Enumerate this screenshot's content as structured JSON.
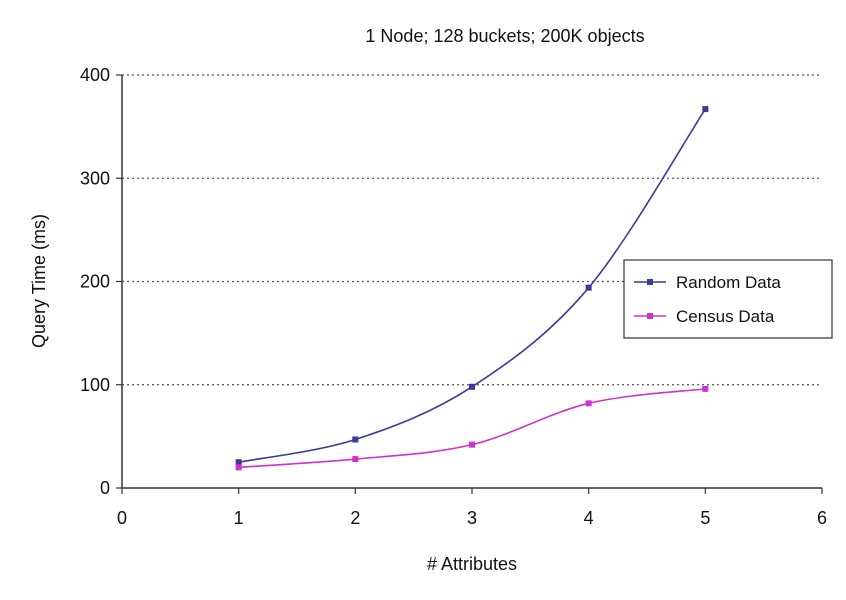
{
  "chart_data": {
    "type": "line",
    "title": "1 Node; 128 buckets; 200K objects",
    "xlabel": "# Attributes",
    "ylabel": "Query Time (ms)",
    "xlim": [
      0,
      6
    ],
    "ylim": [
      0,
      400
    ],
    "xticks": [
      0,
      1,
      2,
      3,
      4,
      5,
      6
    ],
    "yticks": [
      0,
      100,
      200,
      300,
      400
    ],
    "grid": "horizontal dotted",
    "legend_position": "right",
    "series": [
      {
        "name": "Random Data",
        "color": "#3a3a9a",
        "x": [
          1,
          2,
          3,
          4,
          5
        ],
        "y": [
          25,
          47,
          98,
          194,
          367
        ]
      },
      {
        "name": "Census Data",
        "color": "#cc33cc",
        "x": [
          1,
          2,
          3,
          4,
          5
        ],
        "y": [
          20,
          28,
          42,
          82,
          96
        ]
      }
    ]
  }
}
